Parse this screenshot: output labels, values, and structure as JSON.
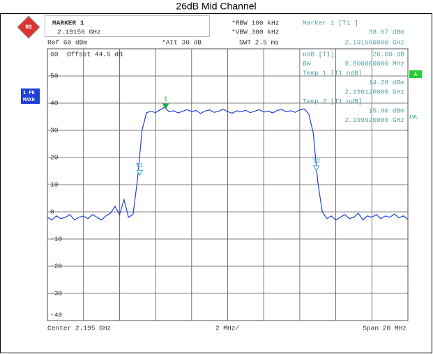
{
  "chart_data": {
    "type": "line",
    "title": "26dB Mid Channel",
    "x": [
      2.185,
      2.18525,
      2.1855,
      2.18575,
      2.186,
      2.18625,
      2.1865,
      2.18675,
      2.187,
      2.18725,
      2.1875,
      2.18775,
      2.188,
      2.18825,
      2.1885,
      2.18875,
      2.189,
      2.18925,
      2.1895,
      2.18975,
      2.19,
      2.19025,
      2.1905,
      2.19075,
      2.191,
      2.19125,
      2.1915,
      2.19175,
      2.192,
      2.19225,
      2.1925,
      2.19275,
      2.193,
      2.19325,
      2.1935,
      2.19375,
      2.194,
      2.19425,
      2.1945,
      2.19475,
      2.195,
      2.19525,
      2.1955,
      2.19575,
      2.196,
      2.19625,
      2.1965,
      2.19675,
      2.197,
      2.19725,
      2.1975,
      2.19775,
      2.198,
      2.19825,
      2.1985,
      2.19875,
      2.199,
      2.19925,
      2.1995,
      2.19975,
      2.2,
      2.20025,
      2.2005,
      2.20075,
      2.201,
      2.20125,
      2.2015,
      2.20175,
      2.202,
      2.20225,
      2.2025,
      2.20275,
      2.203,
      2.20325,
      2.2035,
      2.20375,
      2.204,
      2.20425,
      2.2045,
      2.20475,
      2.205
    ],
    "series": [
      {
        "color": "#1f3fd6",
        "values": [
          -2,
          -3,
          -1.5,
          -2.5,
          -2,
          -1,
          -3,
          -2,
          -1.5,
          -2.5,
          -1,
          -2,
          -3,
          -1.5,
          -0.5,
          2,
          -1,
          4.5,
          -2,
          -1,
          12,
          30,
          36.5,
          37,
          36.5,
          37.5,
          38.5,
          36.8,
          37.2,
          36.4,
          37,
          37.6,
          36.9,
          37.3,
          36.2,
          37.1,
          37.5,
          36.6,
          37,
          37.8,
          36.9,
          36.3,
          37.2,
          36.8,
          37.4,
          36.5,
          37,
          37.6,
          36.7,
          37.1,
          36.4,
          37.3,
          37.7,
          36.8,
          37.2,
          36.6,
          37.5,
          37.9,
          36,
          29,
          11,
          0,
          -2.5,
          -1.5,
          -3,
          -2,
          -1,
          -2.5,
          -2,
          -0.5,
          -3,
          -1.5,
          -2,
          -1,
          -2.5,
          -1.5,
          -2,
          -0.8,
          -2.2,
          -1.5,
          -2.8
        ]
      }
    ],
    "xlim": [
      2.185,
      2.205
    ],
    "xticks": [
      2.185,
      2.187,
      2.189,
      2.191,
      2.193,
      2.195,
      2.197,
      2.199,
      2.201,
      2.203,
      2.205
    ],
    "ylim": [
      -40,
      60
    ],
    "yticks": [
      60,
      50,
      40,
      30,
      20,
      10,
      0,
      -10,
      -20,
      -30,
      -40
    ],
    "grid": true,
    "markers": [
      {
        "label": "1",
        "x": 2.19156,
        "y": 38.67,
        "color": "#2aa84a",
        "filled": true
      },
      {
        "label": "T1",
        "x": 2.19012,
        "y": 14.28,
        "color": "#3aa8c8",
        "filled": false
      },
      {
        "label": "T2",
        "x": 2.19992,
        "y": 15.9,
        "color": "#3aa8c8",
        "filled": false
      }
    ]
  },
  "instrument": {
    "marker_box": [
      "MARKER 1",
      "2.19156 GHz"
    ],
    "ref": "Ref 60 dBm",
    "att": "*Att 30 dB",
    "rbw": "*RBW 100 kHz",
    "vbw": "*VBW 300 kHz",
    "swt": "SWT 2.5 ms",
    "marker_readout": [
      "Marker 1 [T1 ]",
      "38.67 dBm",
      "2.191560000 GHz"
    ],
    "offset": "Offset 44.5 dB",
    "ndb_readout": [
      "ndB [T1]",
      "26.00 dB",
      "BW",
      "9.800000000 MHz",
      "Temp 1 [T1 ndB]",
      "14.28 dBm",
      "2.190120000 GHz",
      "Temp 2 [T1 ndB]",
      "15.90 dBm",
      "2.199920000 GHz"
    ],
    "side": [
      "1 PK",
      "MAXH",
      "A",
      "LVL"
    ],
    "footer": [
      "Center 2.195 GHz",
      "2 MHz/",
      "Span 20 MHz"
    ]
  }
}
